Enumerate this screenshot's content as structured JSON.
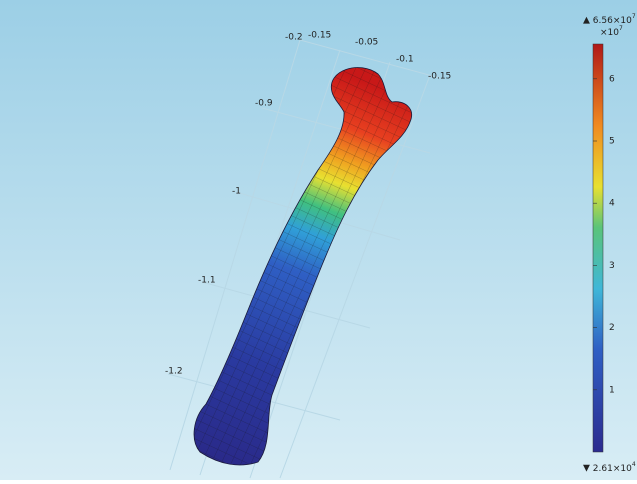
{
  "axis_labels": [
    "-0.2",
    "-0.15",
    "-0.05",
    "-0.1",
    "-0.15",
    "-0.9",
    "-1",
    "-1.1",
    "-1.2"
  ],
  "colorbar": {
    "max_label": "6.56×10",
    "max_exponent": "7",
    "scale_label": "×10",
    "scale_exponent": "7",
    "ticks": [
      1,
      2,
      3,
      4,
      5,
      6
    ],
    "min_label": "2.61×10",
    "min_exponent": "4"
  }
}
